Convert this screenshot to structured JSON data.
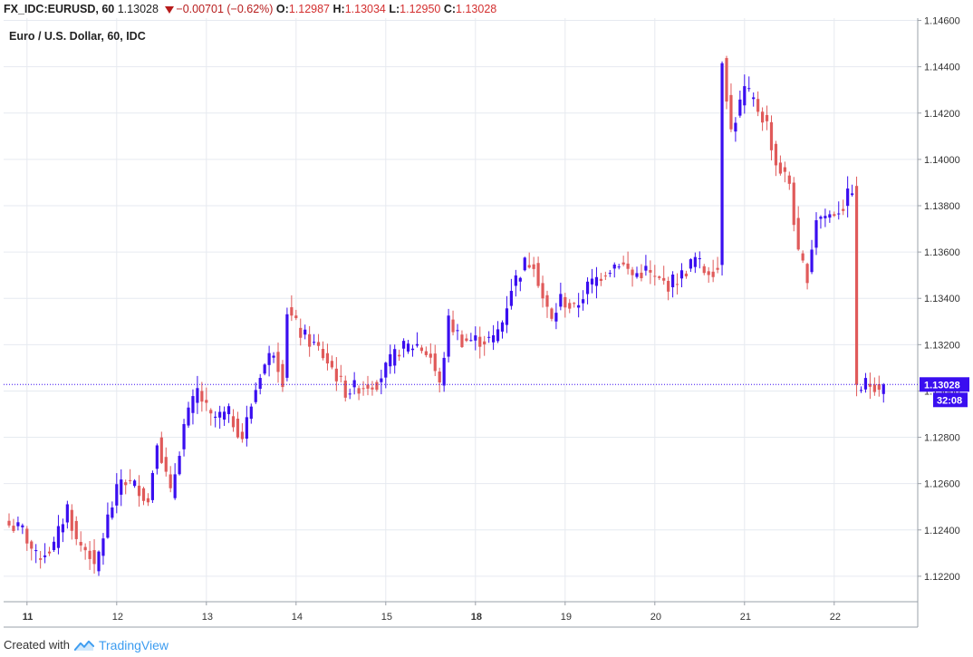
{
  "header": {
    "symbol": "FX_IDC:EURUSD, 60",
    "last": "1.13028",
    "change": "−0.00701 (−0.62%)",
    "o_label": "O:",
    "o_value": "1.12987",
    "h_label": "H:",
    "h_value": "1.13034",
    "l_label": "L:",
    "l_value": "1.12950",
    "c_label": "C:",
    "c_value": "1.13028"
  },
  "footer": {
    "created_with": "Created with",
    "brand": "TradingView"
  },
  "colors": {
    "up": "#3a0ef0",
    "down": "#e05a5a",
    "grid": "#e6eaf0",
    "price_tag": "#3a0ef0"
  },
  "chart_data": {
    "type": "candlestick",
    "title": "Euro / U.S. Dollar, 60, IDC",
    "ylim": [
      1.1209,
      1.1461
    ],
    "y_ticks": [
      "1.12200",
      "1.12400",
      "1.12600",
      "1.12800",
      "1.13000",
      "1.13200",
      "1.13400",
      "1.13600",
      "1.13800",
      "1.14000",
      "1.14200",
      "1.14400",
      "1.14600"
    ],
    "x_ticks": [
      {
        "label": "11",
        "bar": 4,
        "bold": true
      },
      {
        "label": "12",
        "bar": 24,
        "bold": false
      },
      {
        "label": "13",
        "bar": 44,
        "bold": false
      },
      {
        "label": "14",
        "bar": 64,
        "bold": false
      },
      {
        "label": "15",
        "bar": 84,
        "bold": false
      },
      {
        "label": "18",
        "bar": 104,
        "bold": true
      },
      {
        "label": "19",
        "bar": 124,
        "bold": false
      },
      {
        "label": "20",
        "bar": 144,
        "bold": false
      },
      {
        "label": "21",
        "bar": 164,
        "bold": false
      },
      {
        "label": "22",
        "bar": 184,
        "bold": false
      }
    ],
    "bar_count": 196,
    "last_price_label": "1.13028",
    "countdown_label": "32:08",
    "close_series": [
      {
        "bar": 0,
        "close": 1.1242
      },
      {
        "bar": 3,
        "close": 1.124
      },
      {
        "bar": 6,
        "close": 1.1228
      },
      {
        "bar": 10,
        "close": 1.1233
      },
      {
        "bar": 13,
        "close": 1.125
      },
      {
        "bar": 15,
        "close": 1.1235
      },
      {
        "bar": 18,
        "close": 1.123
      },
      {
        "bar": 19,
        "close": 1.1222
      },
      {
        "bar": 22,
        "close": 1.1245
      },
      {
        "bar": 25,
        "close": 1.1262
      },
      {
        "bar": 29,
        "close": 1.1258
      },
      {
        "bar": 31,
        "close": 1.1252
      },
      {
        "bar": 33,
        "close": 1.128
      },
      {
        "bar": 36,
        "close": 1.1255
      },
      {
        "bar": 39,
        "close": 1.1285
      },
      {
        "bar": 42,
        "close": 1.13
      },
      {
        "bar": 45,
        "close": 1.1288
      },
      {
        "bar": 49,
        "close": 1.129
      },
      {
        "bar": 52,
        "close": 1.128
      },
      {
        "bar": 56,
        "close": 1.1308
      },
      {
        "bar": 59,
        "close": 1.1318
      },
      {
        "bar": 61,
        "close": 1.1305
      },
      {
        "bar": 62,
        "close": 1.1335
      },
      {
        "bar": 65,
        "close": 1.1325
      },
      {
        "bar": 69,
        "close": 1.1318
      },
      {
        "bar": 72,
        "close": 1.131
      },
      {
        "bar": 75,
        "close": 1.13
      },
      {
        "bar": 78,
        "close": 1.1302
      },
      {
        "bar": 82,
        "close": 1.1304
      },
      {
        "bar": 87,
        "close": 1.1318
      },
      {
        "bar": 91,
        "close": 1.132
      },
      {
        "bar": 94,
        "close": 1.1315
      },
      {
        "bar": 96,
        "close": 1.1302
      },
      {
        "bar": 98,
        "close": 1.133
      },
      {
        "bar": 101,
        "close": 1.1322
      },
      {
        "bar": 104,
        "close": 1.1322
      },
      {
        "bar": 108,
        "close": 1.1322
      },
      {
        "bar": 110,
        "close": 1.133
      },
      {
        "bar": 112,
        "close": 1.1345
      },
      {
        "bar": 115,
        "close": 1.1355
      },
      {
        "bar": 117,
        "close": 1.1356
      },
      {
        "bar": 119,
        "close": 1.134
      },
      {
        "bar": 121,
        "close": 1.133
      },
      {
        "bar": 123,
        "close": 1.134
      },
      {
        "bar": 126,
        "close": 1.1335
      },
      {
        "bar": 129,
        "close": 1.1345
      },
      {
        "bar": 133,
        "close": 1.1352
      },
      {
        "bar": 136,
        "close": 1.1356
      },
      {
        "bar": 139,
        "close": 1.135
      },
      {
        "bar": 142,
        "close": 1.1352
      },
      {
        "bar": 144,
        "close": 1.1348
      },
      {
        "bar": 147,
        "close": 1.1346
      },
      {
        "bar": 150,
        "close": 1.135
      },
      {
        "bar": 153,
        "close": 1.1357
      },
      {
        "bar": 155,
        "close": 1.1352
      },
      {
        "bar": 158,
        "close": 1.1353
      },
      {
        "bar": 159,
        "close": 1.1444
      },
      {
        "bar": 161,
        "close": 1.1412
      },
      {
        "bar": 164,
        "close": 1.143
      },
      {
        "bar": 166,
        "close": 1.1425
      },
      {
        "bar": 169,
        "close": 1.1415
      },
      {
        "bar": 171,
        "close": 1.1398
      },
      {
        "bar": 174,
        "close": 1.139
      },
      {
        "bar": 176,
        "close": 1.1358
      },
      {
        "bar": 178,
        "close": 1.135
      },
      {
        "bar": 180,
        "close": 1.1375
      },
      {
        "bar": 183,
        "close": 1.1376
      },
      {
        "bar": 186,
        "close": 1.138
      },
      {
        "bar": 188,
        "close": 1.1388
      },
      {
        "bar": 189,
        "close": 1.13
      },
      {
        "bar": 191,
        "close": 1.1303
      },
      {
        "bar": 193,
        "close": 1.1303
      },
      {
        "bar": 195,
        "close": 1.1303
      }
    ]
  }
}
